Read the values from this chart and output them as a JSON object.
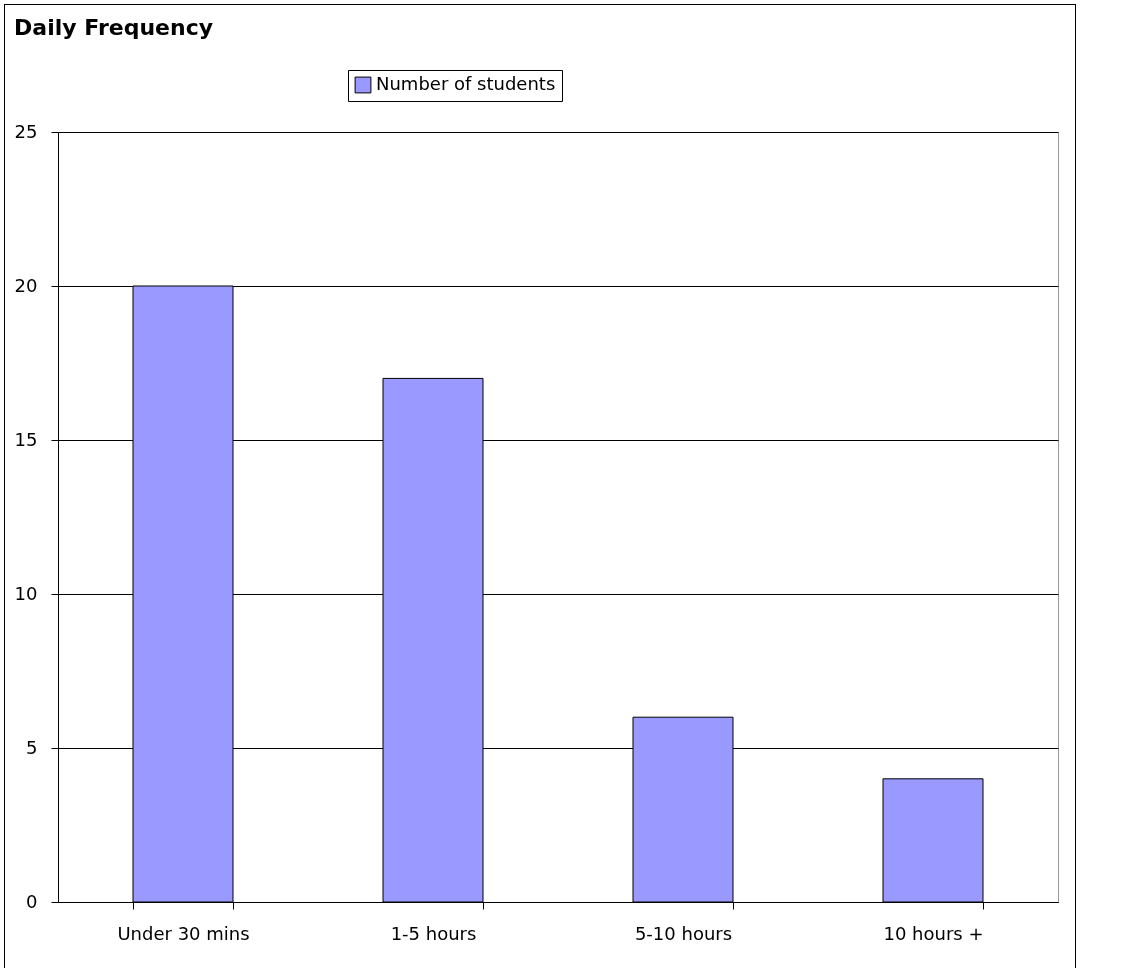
{
  "chart_data": {
    "type": "bar",
    "title": "Daily Frequency",
    "categories": [
      "Under 30 mins",
      "1-5 hours",
      "5-10 hours",
      "10 hours +"
    ],
    "series": [
      {
        "name": "Number of students",
        "color": "#9999ff",
        "values": [
          20,
          17,
          6,
          4
        ]
      }
    ],
    "ylim": [
      0,
      25
    ],
    "yticks": [
      0,
      5,
      10,
      15,
      20,
      25
    ],
    "grid": "y",
    "legend": "top"
  }
}
